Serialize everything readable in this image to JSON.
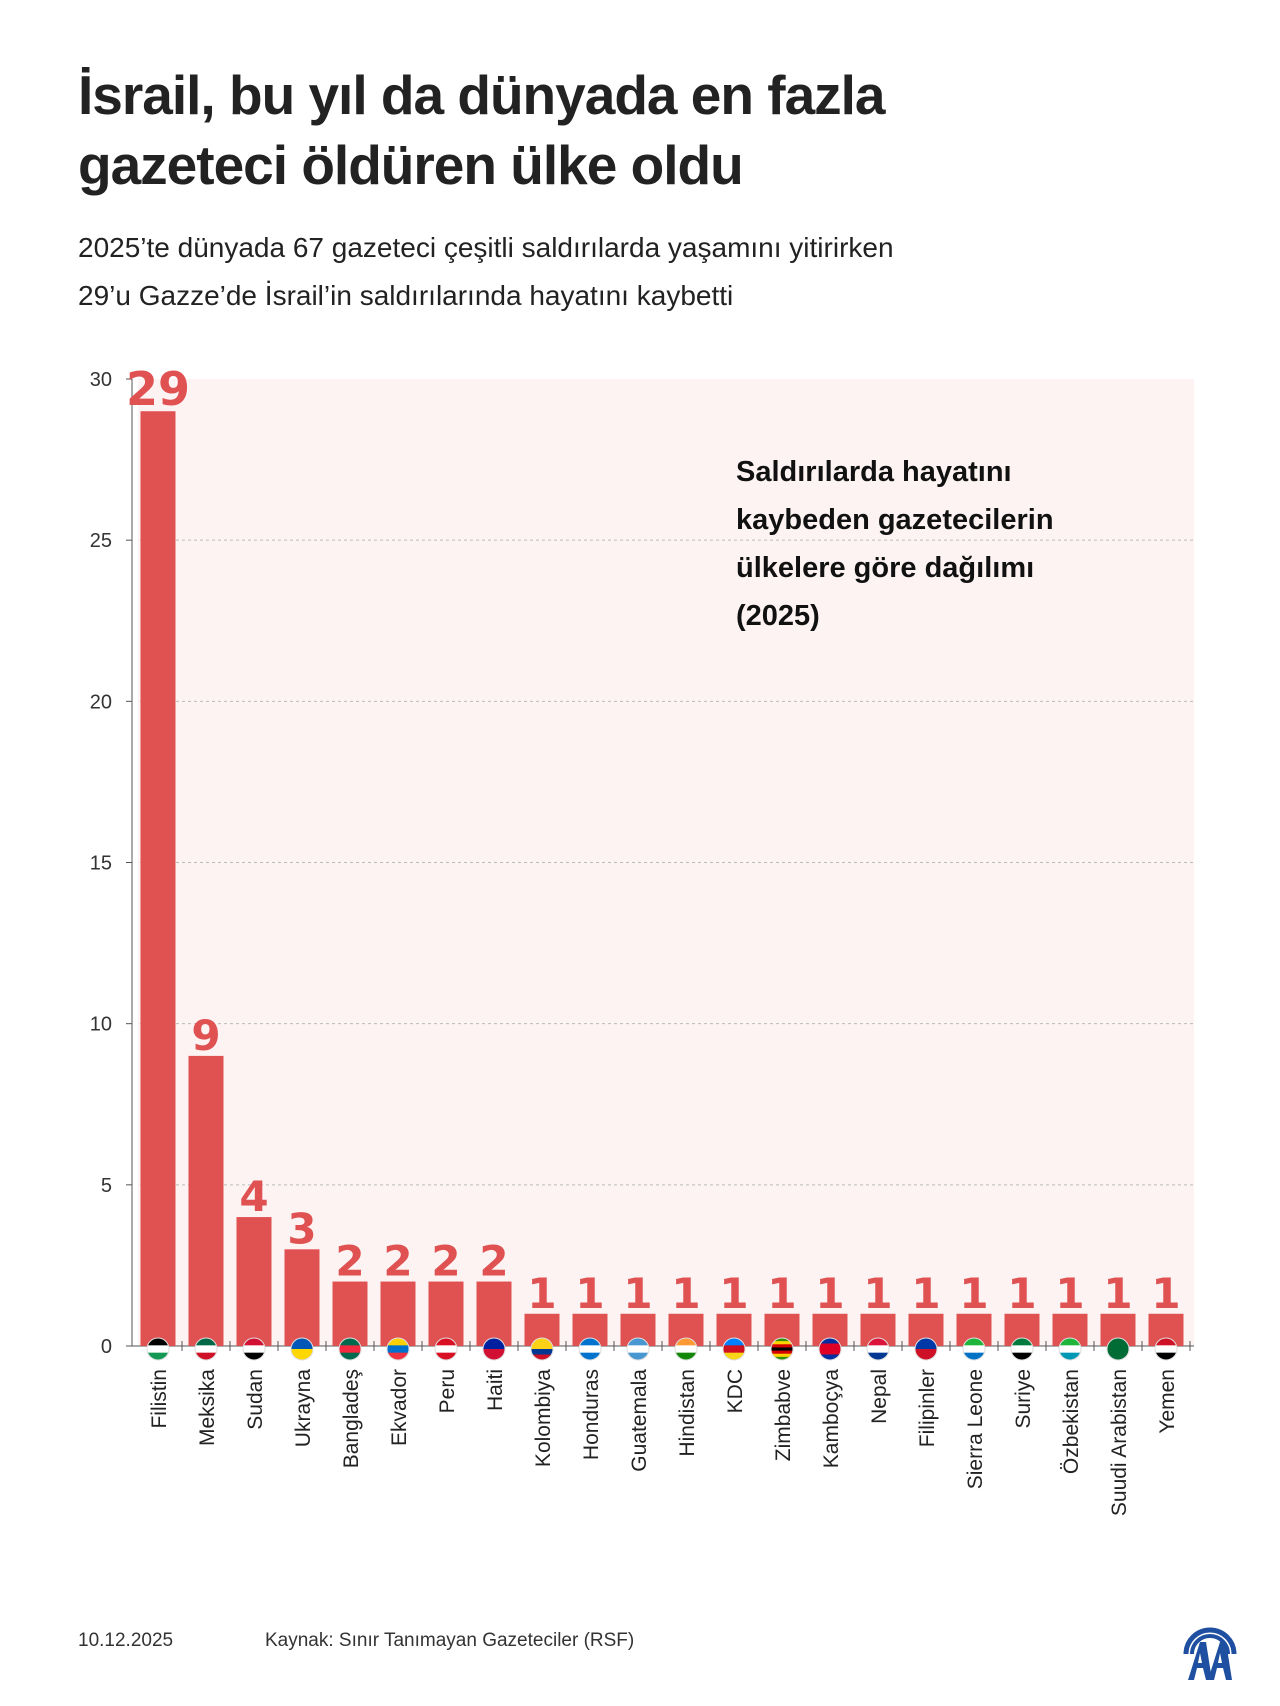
{
  "header": {
    "title_line1": "İsrail, bu yıl da dünyada en fazla",
    "title_line2": "gazeteci öldüren ülke oldu",
    "subtitle_line1": "2025’te dünyada 67 gazeteci çeşitli saldırılarda yaşamını yitirirken",
    "subtitle_line2": "29’u Gazze’de İsrail’in saldırılarında hayatını kaybetti"
  },
  "chart_data": {
    "type": "bar",
    "title": "Saldırılarda hayatını kaybeden gazetecilerin ülkelere göre dağılımı (2025)",
    "title_lines": [
      "Saldırılarda hayatını",
      "kaybeden gazetecilerin",
      "ülkelere göre dağılımı",
      "(2025)"
    ],
    "categories": [
      "Filistin",
      "Meksika",
      "Sudan",
      "Ukrayna",
      "Bangladeş",
      "Ekvador",
      "Peru",
      "Haiti",
      "Kolombiya",
      "Honduras",
      "Guatemala",
      "Hindistan",
      "KDC",
      "Zimbabve",
      "Kamboçya",
      "Nepal",
      "Filipinler",
      "Sierra Leone",
      "Suriye",
      "Özbekistan",
      "Suudi Arabistan",
      "Yemen"
    ],
    "values": [
      29,
      9,
      4,
      3,
      2,
      2,
      2,
      2,
      1,
      1,
      1,
      1,
      1,
      1,
      1,
      1,
      1,
      1,
      1,
      1,
      1,
      1
    ],
    "ylim": [
      0,
      30
    ],
    "yticks": [
      0,
      5,
      10,
      15,
      20,
      25,
      30
    ],
    "grid": true,
    "legend_placement": "top-right",
    "xlabel": "",
    "ylabel": "",
    "colors": {
      "bar": "#e05252",
      "label": "#e05252",
      "plot_bg": "#fdf3f3",
      "grid": "#bbbbbb"
    },
    "flags": [
      [
        "#000000",
        "#ffffff",
        "#149954"
      ],
      [
        "#006847",
        "#ffffff",
        "#ce1126"
      ],
      [
        "#d21034",
        "#ffffff",
        "#000000"
      ],
      [
        "#0057b7",
        "#ffd700"
      ],
      [
        "#006a4e",
        "#f42a41",
        "#006a4e"
      ],
      [
        "#ffd100",
        "#0072ce",
        "#ef3340"
      ],
      [
        "#d91023",
        "#ffffff",
        "#d91023"
      ],
      [
        "#00209f",
        "#d21034"
      ],
      [
        "#fcd116",
        "#fcd116",
        "#003893",
        "#ce1126"
      ],
      [
        "#0073cf",
        "#ffffff",
        "#0073cf"
      ],
      [
        "#4997d0",
        "#ffffff",
        "#4997d0"
      ],
      [
        "#ff9933",
        "#ffffff",
        "#138808"
      ],
      [
        "#007fff",
        "#ce1021",
        "#f7d618"
      ],
      [
        "#319208",
        "#ffd200",
        "#d40000",
        "#000000",
        "#d40000",
        "#ffd200",
        "#319208"
      ],
      [
        "#032ea1",
        "#e00025",
        "#e00025",
        "#032ea1"
      ],
      [
        "#dc143c",
        "#ffffff",
        "#003893"
      ],
      [
        "#0038a8",
        "#ce1126"
      ],
      [
        "#1eb53a",
        "#ffffff",
        "#0072c6"
      ],
      [
        "#007a3d",
        "#ffffff",
        "#000000"
      ],
      [
        "#1eb53a",
        "#ffffff",
        "#0099b5"
      ],
      [
        "#006c35",
        "#006c35"
      ],
      [
        "#ce1126",
        "#ffffff",
        "#000000"
      ]
    ]
  },
  "footer": {
    "date": "10.12.2025",
    "source": "Kaynak: Sınır Tanımayan Gazeteciler (RSF)",
    "logo_text": "AA"
  }
}
